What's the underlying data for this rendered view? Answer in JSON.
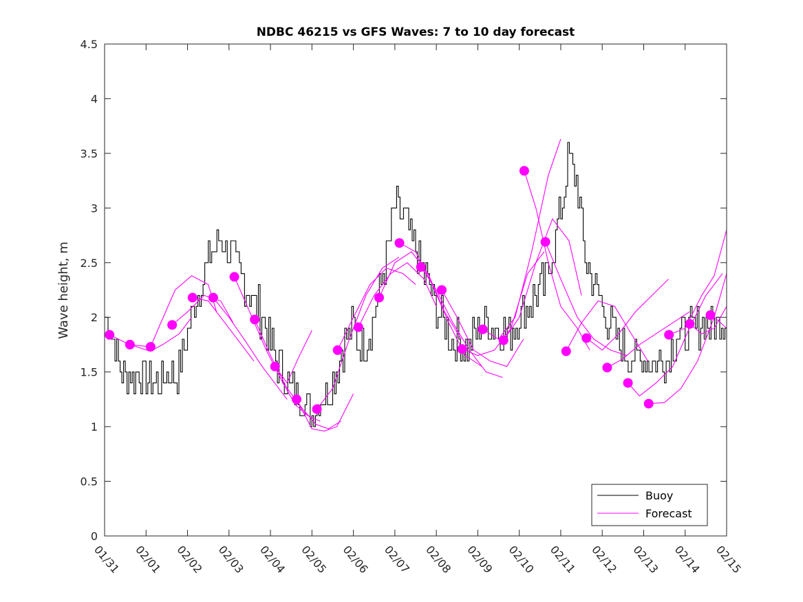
{
  "chart_data": {
    "type": "line",
    "title": "NDBC 46215 vs GFS Waves: 7 to 10 day forecast",
    "xlabel": "",
    "ylabel": "Wave height, m",
    "ylim": [
      0,
      4.5
    ],
    "yticks": [
      0,
      0.5,
      1,
      1.5,
      2,
      2.5,
      3,
      3.5,
      4,
      4.5
    ],
    "ytick_labels": [
      "0",
      "0.5",
      "1",
      "1.5",
      "2",
      "2.5",
      "3",
      "3.5",
      "4",
      "4.5"
    ],
    "xlim_days": [
      0,
      15
    ],
    "xtick_labels": [
      "01/31",
      "02/01",
      "02/02",
      "02/03",
      "02/04",
      "02/05",
      "02/06",
      "02/07",
      "02/08",
      "02/09",
      "02/10",
      "02/11",
      "02/12",
      "02/13",
      "02/14",
      "02/15"
    ],
    "grid": false,
    "legend": {
      "placement": "bottom-right",
      "entries": [
        {
          "label": "Buoy",
          "color": "#000000"
        },
        {
          "label": "Forecast",
          "color": "#ff00ff"
        }
      ]
    },
    "colors": {
      "buoy": "#000000",
      "forecast": "#ff00ff"
    },
    "buoy_series": {
      "name": "Buoy",
      "note": "x in days since 01/31, y in meters (envelope of noisy trace)",
      "x": [
        0,
        0.2,
        0.4,
        0.6,
        0.8,
        1.0,
        1.2,
        1.4,
        1.6,
        1.8,
        2.0,
        2.2,
        2.4,
        2.6,
        2.8,
        3.0,
        3.2,
        3.4,
        3.6,
        3.8,
        4.0,
        4.2,
        4.4,
        4.6,
        4.8,
        5.0,
        5.2,
        5.4,
        5.6,
        5.8,
        6.0,
        6.2,
        6.4,
        6.6,
        6.8,
        7.0,
        7.2,
        7.4,
        7.6,
        7.8,
        8.0,
        8.2,
        8.4,
        8.6,
        8.8,
        9.0,
        9.2,
        9.4,
        9.6,
        9.8,
        10.0,
        10.2,
        10.4,
        10.6,
        10.8,
        11.0,
        11.2,
        11.4,
        11.6,
        11.8,
        12.0,
        12.2,
        12.4,
        12.6,
        12.8,
        13.0,
        13.2,
        13.4,
        13.6,
        13.8,
        14.0,
        14.2,
        14.4,
        14.6,
        14.8,
        15.0
      ],
      "y": [
        2.0,
        1.8,
        1.5,
        1.45,
        1.5,
        1.45,
        1.4,
        1.45,
        1.5,
        1.5,
        1.9,
        2.2,
        2.4,
        2.6,
        2.7,
        2.6,
        2.45,
        2.3,
        2.15,
        2.0,
        1.75,
        1.55,
        1.4,
        1.3,
        1.25,
        1.1,
        1.25,
        1.35,
        1.55,
        1.8,
        1.9,
        1.7,
        1.9,
        2.2,
        2.6,
        3.0,
        2.9,
        2.7,
        2.5,
        2.3,
        2.1,
        1.95,
        1.8,
        1.75,
        1.75,
        1.9,
        1.95,
        1.9,
        1.85,
        1.9,
        2.0,
        2.1,
        2.2,
        2.3,
        2.6,
        3.0,
        3.5,
        3.2,
        2.5,
        2.3,
        2.1,
        1.9,
        1.75,
        1.65,
        1.6,
        1.65,
        1.6,
        1.6,
        1.65,
        1.85,
        1.85,
        1.9,
        1.95,
        1.9,
        1.95,
        2.0
      ],
      "observed_max": 3.7,
      "observed_min": 1.0
    },
    "forecast_points": {
      "name": "Forecast (7-10 day lead, markers at forecast start)",
      "x": [
        0.12,
        0.61,
        1.11,
        1.63,
        2.12,
        2.62,
        3.13,
        3.62,
        4.11,
        4.63,
        5.12,
        5.62,
        6.12,
        6.62,
        7.11,
        7.63,
        8.13,
        8.62,
        9.12,
        9.62,
        10.12,
        10.63,
        11.13,
        11.62,
        12.12,
        12.62,
        13.12,
        13.61,
        14.11,
        14.61
      ],
      "y": [
        1.84,
        1.75,
        1.73,
        1.93,
        2.18,
        2.18,
        2.37,
        1.98,
        1.55,
        1.25,
        1.16,
        1.7,
        1.91,
        2.18,
        2.68,
        2.46,
        2.25,
        1.71,
        1.89,
        1.79,
        3.34,
        2.69,
        1.69,
        1.81,
        1.54,
        1.4,
        1.21,
        1.84,
        1.94,
        2.02
      ]
    },
    "forecast_series": [
      {
        "name": "fc01",
        "x": [
          0.12,
          0.6,
          1.1
        ],
        "y": [
          1.84,
          1.75,
          1.73
        ]
      },
      {
        "name": "fc02",
        "x": [
          0.61,
          1.1,
          1.4,
          1.8,
          2.1
        ],
        "y": [
          1.75,
          1.69,
          1.75,
          1.85,
          2.0
        ]
      },
      {
        "name": "fc03",
        "x": [
          1.11,
          1.3,
          1.7,
          2.1,
          2.5,
          2.7
        ],
        "y": [
          1.73,
          1.9,
          2.25,
          2.38,
          2.3,
          2.05
        ]
      },
      {
        "name": "fc04",
        "x": [
          1.63,
          2.0,
          2.4,
          2.8,
          3.1
        ],
        "y": [
          1.93,
          2.05,
          2.2,
          2.15,
          1.95
        ]
      },
      {
        "name": "fc05",
        "x": [
          2.12,
          2.5,
          2.9,
          3.3,
          3.6
        ],
        "y": [
          2.18,
          2.15,
          1.95,
          1.75,
          1.6
        ]
      },
      {
        "name": "fc06",
        "x": [
          2.62,
          3.0,
          3.4,
          3.8,
          4.1,
          4.4
        ],
        "y": [
          2.18,
          2.0,
          1.78,
          1.55,
          1.4,
          1.25
        ]
      },
      {
        "name": "fc07",
        "x": [
          3.13,
          3.5,
          3.9,
          4.3,
          4.6,
          4.9,
          5.2
        ],
        "y": [
          2.37,
          2.05,
          1.7,
          1.4,
          1.2,
          1.1,
          1.05
        ]
      },
      {
        "name": "fc08",
        "x": [
          3.62,
          4.0,
          4.4,
          4.8,
          5.1,
          5.4,
          5.7
        ],
        "y": [
          1.98,
          1.65,
          1.35,
          1.15,
          1.02,
          0.98,
          1.05
        ]
      },
      {
        "name": "fc09",
        "x": [
          4.11,
          4.4,
          4.7,
          5.0
        ],
        "y": [
          1.55,
          1.4,
          1.65,
          1.88
        ]
      },
      {
        "name": "fc10",
        "x": [
          4.63,
          5.0,
          5.3,
          5.6,
          6.0
        ],
        "y": [
          1.25,
          0.98,
          0.96,
          1.0,
          1.3
        ]
      },
      {
        "name": "fc11",
        "x": [
          5.12,
          5.5,
          5.9,
          6.3,
          6.7,
          7.1
        ],
        "y": [
          1.16,
          1.35,
          1.8,
          2.2,
          2.45,
          2.55
        ]
      },
      {
        "name": "fc12",
        "x": [
          5.62,
          6.0,
          6.4,
          6.8,
          7.2,
          7.5
        ],
        "y": [
          1.7,
          2.0,
          2.3,
          2.45,
          2.4,
          2.3
        ]
      },
      {
        "name": "fc13",
        "x": [
          6.12,
          6.5,
          6.9,
          7.3,
          7.7,
          8.0
        ],
        "y": [
          1.91,
          2.2,
          2.4,
          2.5,
          2.35,
          2.1
        ]
      },
      {
        "name": "fc14",
        "x": [
          6.62,
          7.0,
          7.4,
          7.8,
          8.2,
          8.6
        ],
        "y": [
          2.18,
          2.5,
          2.6,
          2.4,
          2.05,
          1.8
        ]
      },
      {
        "name": "fc15",
        "x": [
          7.11,
          7.5,
          7.9,
          8.3,
          8.7,
          9.1
        ],
        "y": [
          2.68,
          2.6,
          2.3,
          1.95,
          1.65,
          1.55
        ]
      },
      {
        "name": "fc16",
        "x": [
          7.63,
          8.0,
          8.4,
          8.8,
          9.2,
          9.6
        ],
        "y": [
          2.46,
          2.25,
          1.95,
          1.7,
          1.5,
          1.45
        ]
      },
      {
        "name": "fc17",
        "x": [
          8.13,
          8.5,
          8.9,
          9.3,
          9.7,
          10.1
        ],
        "y": [
          2.25,
          2.0,
          1.7,
          1.6,
          1.55,
          1.8
        ]
      },
      {
        "name": "fc18",
        "x": [
          8.62,
          9.0,
          9.4,
          9.8,
          10.2,
          10.6
        ],
        "y": [
          1.71,
          1.65,
          1.7,
          1.9,
          2.4,
          2.6
        ]
      },
      {
        "name": "fc19",
        "x": [
          9.12,
          9.5,
          9.9,
          10.3,
          10.7,
          11.0
        ],
        "y": [
          1.89,
          1.8,
          2.0,
          2.6,
          3.3,
          3.63
        ]
      },
      {
        "name": "fc20",
        "x": [
          9.62,
          10.0,
          10.4,
          10.8,
          11.2,
          11.5
        ],
        "y": [
          1.79,
          2.0,
          2.5,
          2.9,
          2.7,
          2.2
        ]
      },
      {
        "name": "fc21",
        "x": [
          10.12,
          10.4,
          10.7,
          11.0,
          11.4,
          11.7
        ],
        "y": [
          3.34,
          3.0,
          2.5,
          2.1,
          1.9,
          1.7
        ]
      },
      {
        "name": "fc22",
        "x": [
          10.63,
          11.0,
          11.4,
          11.8,
          12.2,
          12.6
        ],
        "y": [
          2.69,
          2.35,
          2.0,
          1.8,
          1.7,
          1.65
        ]
      },
      {
        "name": "fc23",
        "x": [
          11.13,
          11.5,
          11.9,
          12.3,
          12.7,
          13.1
        ],
        "y": [
          1.69,
          1.95,
          2.15,
          2.1,
          1.85,
          1.6
        ]
      },
      {
        "name": "fc24",
        "x": [
          11.62,
          12.0,
          12.4,
          12.8,
          13.2,
          13.6
        ],
        "y": [
          1.81,
          1.7,
          1.85,
          2.05,
          2.2,
          2.35
        ]
      },
      {
        "name": "fc25",
        "x": [
          12.12,
          12.5,
          12.9,
          13.3,
          13.7,
          14.1
        ],
        "y": [
          1.54,
          1.62,
          1.75,
          1.85,
          1.95,
          2.05
        ]
      },
      {
        "name": "fc26",
        "x": [
          12.62,
          12.9,
          13.3,
          13.7,
          14.1,
          14.5,
          14.9
        ],
        "y": [
          1.4,
          1.28,
          1.4,
          1.55,
          1.9,
          2.2,
          2.4
        ]
      },
      {
        "name": "fc27",
        "x": [
          13.12,
          13.5,
          13.9,
          14.3,
          14.7,
          15.0
        ],
        "y": [
          1.21,
          1.22,
          1.35,
          1.6,
          2.0,
          2.4
        ]
      },
      {
        "name": "fc28",
        "x": [
          13.61,
          14.0,
          14.4,
          14.7,
          15.0
        ],
        "y": [
          1.84,
          1.9,
          2.2,
          2.38,
          2.8
        ]
      },
      {
        "name": "fc29",
        "x": [
          14.11,
          14.4,
          14.7,
          15.0
        ],
        "y": [
          1.94,
          1.85,
          1.9,
          2.1
        ]
      },
      {
        "name": "fc30",
        "x": [
          14.61,
          14.8,
          15.0
        ],
        "y": [
          2.02,
          1.97,
          1.9
        ]
      }
    ]
  }
}
